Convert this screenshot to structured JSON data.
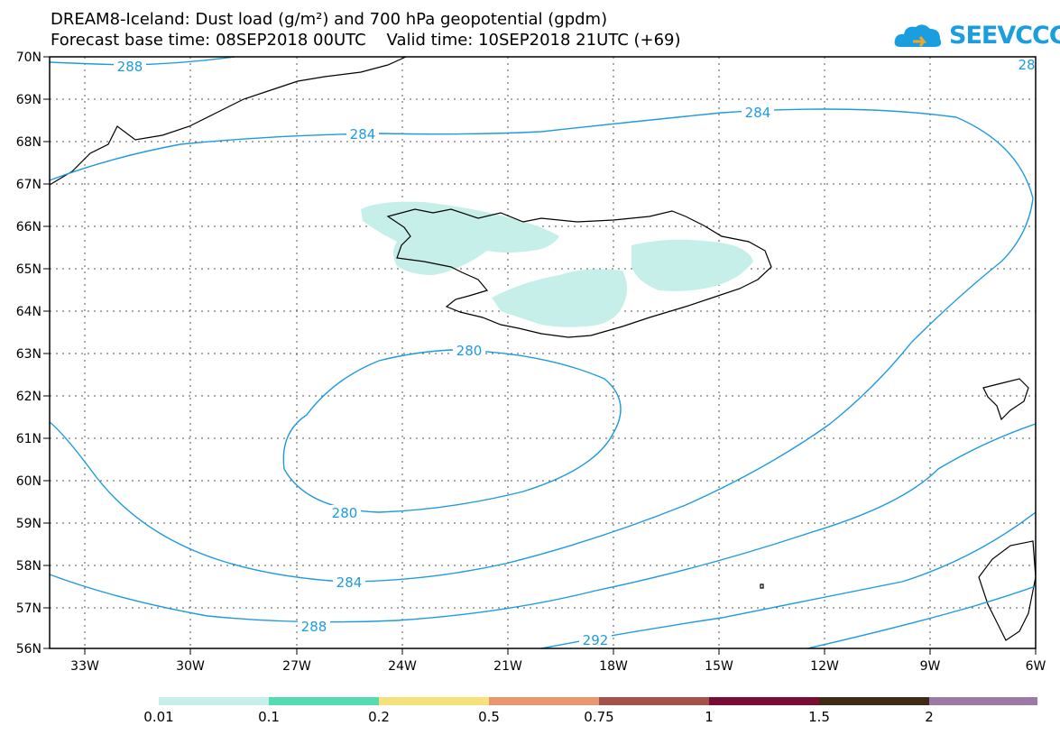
{
  "title_line1": "DREAM8-Iceland: Dust load (g/m²) and 700 hPa geopotential (gpdm)",
  "title_line2": "Forecast base time: 08SEP2018 00UTC    Valid time: 10SEP2018 21UTC (+69)",
  "logo": {
    "text": "SEEVCCC",
    "color": "#1a9ee0"
  },
  "map": {
    "lat_labels": [
      "70N",
      "69N",
      "68N",
      "67N",
      "66N",
      "65N",
      "64N",
      "63N",
      "62N",
      "61N",
      "60N",
      "59N",
      "58N",
      "57N",
      "56N"
    ],
    "lon_labels": [
      "33W",
      "30W",
      "27W",
      "24W",
      "21W",
      "18W",
      "15W",
      "12W",
      "9W",
      "6W"
    ],
    "contour_color": "#1e9be0",
    "dust_color": "#c6efea",
    "contour_labels": [
      "288",
      "284",
      "284",
      "280",
      "280",
      "284",
      "288",
      "292",
      "28"
    ]
  },
  "legend": {
    "colors": [
      "#c6efea",
      "#55dbb0",
      "#f5e27a",
      "#e99771",
      "#a5524b",
      "#7a0d33",
      "#3f2a16",
      "#9d7aa6"
    ],
    "labels": [
      "0.01",
      "0.1",
      "0.2",
      "0.5",
      "0.75",
      "1",
      "1.5",
      "2"
    ]
  }
}
